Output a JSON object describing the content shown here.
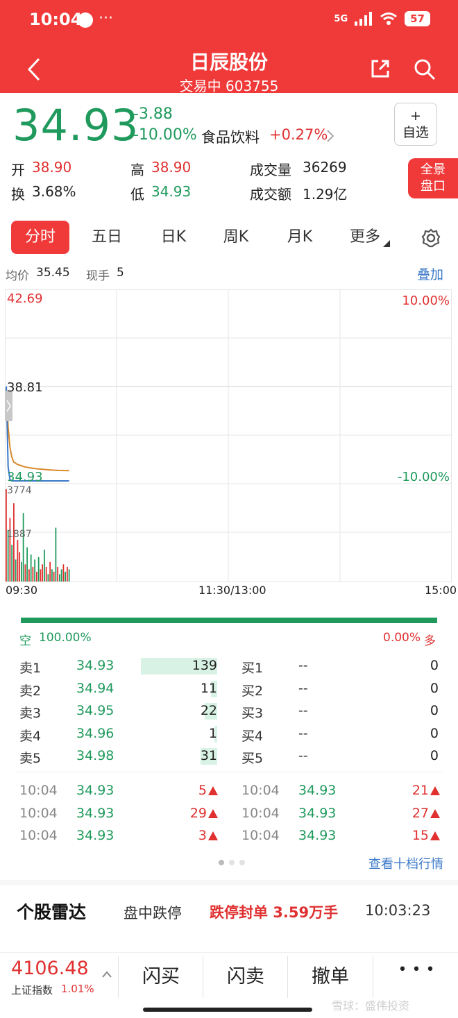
{
  "status": {
    "time": "10:04",
    "dots": "···",
    "network": "5G",
    "battery": "57"
  },
  "header": {
    "title": "日辰股份",
    "subtitle": "交易中 603755"
  },
  "quote": {
    "price": "34.93",
    "change": "-3.88",
    "change_pct": "-10.00%",
    "sector_name": "食品饮料",
    "sector_change": "+0.27%",
    "fav_plus": "+",
    "fav_label": "自选",
    "panorama_line1": "全景",
    "panorama_line2": "盘口",
    "open_label": "开",
    "open": "38.90",
    "high_label": "高",
    "high": "38.90",
    "volume_label": "成交量",
    "volume": "36269",
    "turnover_label": "换",
    "turnover": "3.68%",
    "low_label": "低",
    "low": "34.93",
    "amount_label": "成交额",
    "amount": "1.29亿"
  },
  "tabs": [
    "分时",
    "五日",
    "日K",
    "周K",
    "月K",
    "更多"
  ],
  "chart_info": {
    "avg_label": "均价",
    "avg": "35.45",
    "hand_label": "现手",
    "hand": "5",
    "overlay": "叠加"
  },
  "chart_data": {
    "type": "line",
    "price_top": "42.69",
    "price_mid": "38.81",
    "price_bottom": "34.93",
    "pct_top": "10.00%",
    "pct_bottom": "-10.00%",
    "vol_top": "3774",
    "vol_mid": "1887",
    "time_start": "09:30",
    "time_mid": "11:30/13:00",
    "time_end": "15:00",
    "ylim": [
      34.93,
      42.69
    ],
    "minutes": [
      0,
      1,
      2,
      3,
      4,
      6,
      8,
      10,
      13,
      16,
      20,
      24,
      28,
      34
    ],
    "price_series": [
      38.81,
      35.6,
      35.1,
      35.0,
      34.96,
      34.95,
      34.94,
      34.95,
      34.94,
      34.93,
      34.94,
      34.93,
      34.94,
      34.93
    ],
    "avg_series": [
      38.81,
      37.2,
      36.4,
      36.0,
      35.8,
      35.7,
      35.65,
      35.6,
      35.56,
      35.53,
      35.5,
      35.48,
      35.46,
      35.45
    ],
    "volumes": [
      3774,
      2100,
      2600,
      1500,
      3200,
      900,
      1700,
      1200,
      800,
      2800,
      700,
      1400,
      500,
      1100,
      600,
      900,
      400,
      1000,
      500,
      700,
      1300,
      600,
      300,
      800,
      500,
      400,
      2200,
      600,
      300,
      500,
      700,
      400,
      600,
      500
    ],
    "volume_colors": [
      "r",
      "g",
      "r",
      "g",
      "r",
      "g",
      "r",
      "r",
      "g",
      "g",
      "r",
      "g",
      "r",
      "g",
      "r",
      "g",
      "r",
      "g",
      "r",
      "r",
      "g",
      "r",
      "g",
      "r",
      "g",
      "r",
      "g",
      "r",
      "g",
      "g",
      "r",
      "g",
      "r",
      "g"
    ]
  },
  "depth": {
    "short_label": "空",
    "short_pct": "100.00%",
    "long_pct": "0.00%",
    "long_label": "多"
  },
  "order_book": {
    "sells": [
      {
        "label": "卖1",
        "price": "34.93",
        "vol": "139",
        "frac": 1.0
      },
      {
        "label": "卖2",
        "price": "34.94",
        "vol": "11",
        "frac": 0.08
      },
      {
        "label": "卖3",
        "price": "34.95",
        "vol": "22",
        "frac": 0.16
      },
      {
        "label": "卖4",
        "price": "34.96",
        "vol": "1",
        "frac": 0.01
      },
      {
        "label": "卖5",
        "price": "34.98",
        "vol": "31",
        "frac": 0.22
      }
    ],
    "buys": [
      {
        "label": "买1",
        "price": "--",
        "vol": "0"
      },
      {
        "label": "买2",
        "price": "--",
        "vol": "0"
      },
      {
        "label": "买3",
        "price": "--",
        "vol": "0"
      },
      {
        "label": "买4",
        "price": "--",
        "vol": "0"
      },
      {
        "label": "买5",
        "price": "--",
        "vol": "0"
      }
    ]
  },
  "ticks": {
    "left": [
      {
        "time": "10:04",
        "price": "34.93",
        "vol": "5"
      },
      {
        "time": "10:04",
        "price": "34.93",
        "vol": "29"
      },
      {
        "time": "10:04",
        "price": "34.93",
        "vol": "3"
      }
    ],
    "right": [
      {
        "time": "10:04",
        "price": "34.93",
        "vol": "21"
      },
      {
        "time": "10:04",
        "price": "34.93",
        "vol": "27"
      },
      {
        "time": "10:04",
        "price": "34.93",
        "vol": "15"
      }
    ],
    "more_link": "查看十档行情"
  },
  "radar": {
    "title": "个股雷达",
    "event": "盘中跌停",
    "detail": "跌停封单 3.59万手",
    "time": "10:03:23"
  },
  "bottom": {
    "index_value": "4106.48",
    "index_name": "上证指数",
    "index_pct": "1.01%",
    "flash_buy": "闪买",
    "flash_sell": "闪卖",
    "cancel": "撤单",
    "more": "• • •",
    "watermark": "雪球：盛伟投资"
  },
  "colors": {
    "red": "#e03030",
    "green": "#1f9a5c",
    "avg_line": "#d98a2b",
    "price_line": "#3a78c8"
  }
}
